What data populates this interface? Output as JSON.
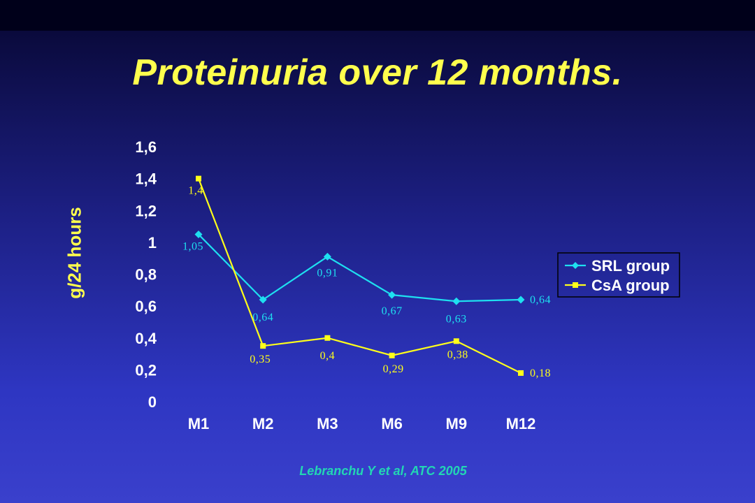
{
  "slide": {
    "title": "Proteinuria over 12 months.",
    "citation": "Lebranchu Y et al, ATC 2005"
  },
  "chart_data": {
    "type": "line",
    "title": "Proteinuria over 12 months.",
    "ylabel": "g/24 hours",
    "xlabel": "",
    "categories": [
      "M1",
      "M2",
      "M3",
      "M6",
      "M9",
      "M12"
    ],
    "ylim": [
      0,
      1.6
    ],
    "yticks": [
      "0",
      "0,2",
      "0,4",
      "0,6",
      "0,8",
      "1",
      "1,2",
      "1,4",
      "1,6"
    ],
    "grid": false,
    "legend_position": "right",
    "series": [
      {
        "name": "SRL group",
        "color": "#1ee0f0",
        "marker": "diamond",
        "values": [
          1.05,
          0.64,
          0.91,
          0.67,
          0.63,
          0.64
        ],
        "labels": [
          "1,05",
          "0,64",
          "0,91",
          "0,67",
          "0,63",
          "0,64"
        ]
      },
      {
        "name": "CsA group",
        "color": "#ffff1a",
        "marker": "square",
        "values": [
          1.4,
          0.35,
          0.4,
          0.29,
          0.38,
          0.18
        ],
        "labels": [
          "1,4",
          "0,35",
          "0,4",
          "0,29",
          "0,38",
          "0,18"
        ]
      }
    ]
  }
}
